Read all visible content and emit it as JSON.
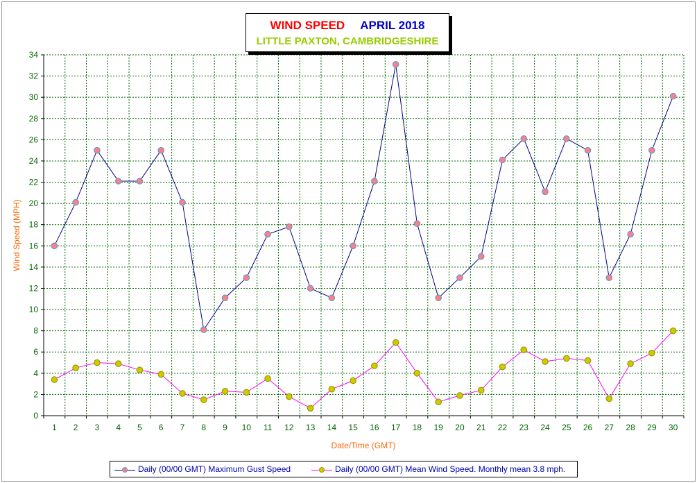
{
  "title": {
    "main": "WIND SPEED",
    "month": "APRIL 2018",
    "location": "LITTLE PAXTON, CAMBRIDGESHIRE"
  },
  "colors": {
    "title_main": "#ff0000",
    "title_month": "#0000cc",
    "location": "#99cc00",
    "axis_labels": "#ff6600",
    "tick_labels": "#006600",
    "grid": "#006600",
    "gust_line": "#000080",
    "gust_marker_fill": "#ff8080",
    "gust_marker_stroke": "#6699cc",
    "mean_line": "#ff00ff",
    "mean_marker_fill": "#cccc00",
    "mean_marker_stroke": "#999900"
  },
  "chart_data": {
    "type": "line",
    "xlabel": "Date/Time (GMT)",
    "ylabel": "Wind Speed (MPH)",
    "ylim": [
      0,
      34
    ],
    "yticks": [
      0,
      2,
      4,
      6,
      8,
      10,
      12,
      14,
      16,
      18,
      20,
      22,
      24,
      26,
      28,
      30,
      32,
      34
    ],
    "x": [
      1,
      2,
      3,
      4,
      5,
      6,
      7,
      8,
      9,
      10,
      11,
      12,
      13,
      14,
      15,
      16,
      17,
      18,
      19,
      20,
      21,
      22,
      23,
      24,
      25,
      26,
      27,
      28,
      29,
      30
    ],
    "grid": true,
    "legend_position": "bottom",
    "series": [
      {
        "name": "Daily (00/00 GMT) Maximum Gust Speed",
        "values": [
          16,
          20.1,
          25,
          22.1,
          22.1,
          25,
          20.1,
          8.1,
          11.1,
          13,
          17.1,
          17.8,
          12,
          11.1,
          16,
          22.1,
          33.1,
          18.1,
          11.1,
          13,
          15,
          24.1,
          26.1,
          21.1,
          26.1,
          25,
          13,
          17.1,
          25,
          30.1
        ]
      },
      {
        "name": "Daily (00/00 GMT) Mean Wind Speed. Monthly mean 3.8 mph.",
        "values": [
          3.4,
          4.5,
          5,
          4.9,
          4.3,
          3.9,
          2.1,
          1.5,
          2.3,
          2.2,
          3.5,
          1.8,
          0.7,
          2.5,
          3.3,
          4.7,
          6.9,
          4,
          1.3,
          1.9,
          2.4,
          4.6,
          6.2,
          5.1,
          5.4,
          5.2,
          1.6,
          4.9,
          5.9,
          8
        ]
      }
    ]
  }
}
